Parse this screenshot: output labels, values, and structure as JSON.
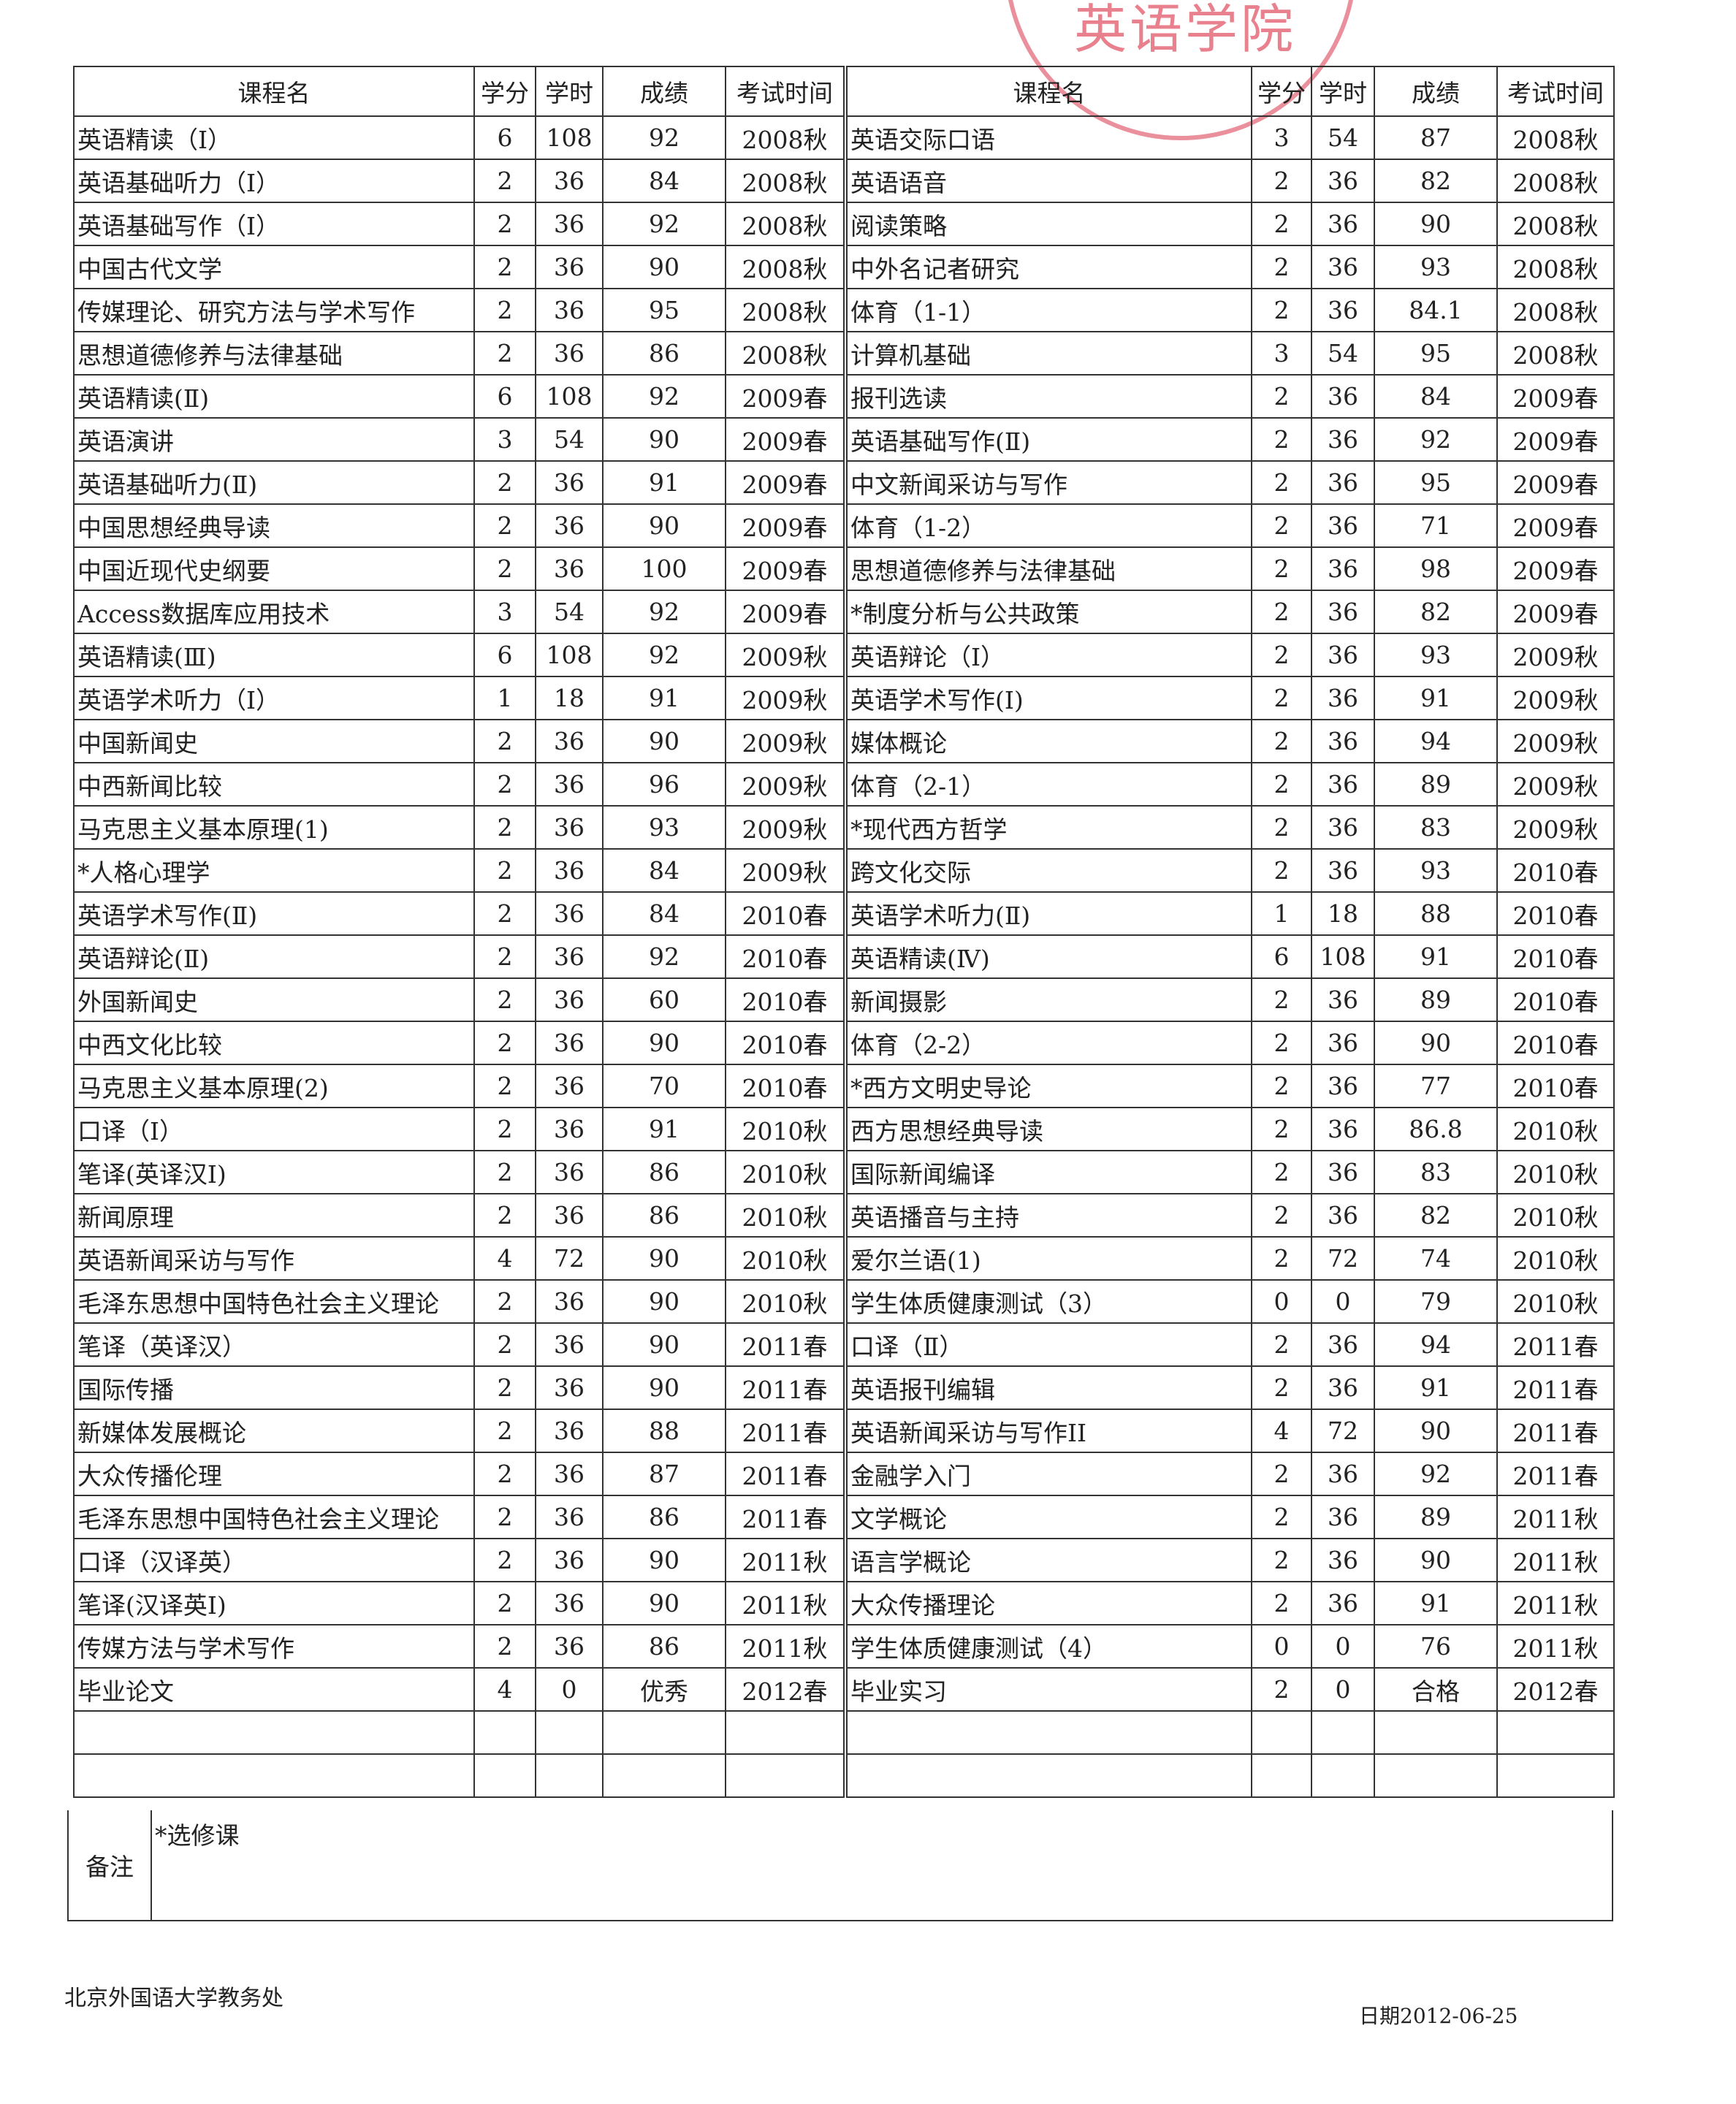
{
  "headers": [
    "课程名",
    "学分",
    "学时",
    "成绩",
    "考试时间"
  ],
  "left_rows": [
    [
      "英语精读（Ⅰ）",
      "6",
      "108",
      "92",
      "2008秋"
    ],
    [
      "英语基础听力（Ⅰ）",
      "2",
      "36",
      "84",
      "2008秋"
    ],
    [
      "英语基础写作（Ⅰ）",
      "2",
      "36",
      "92",
      "2008秋"
    ],
    [
      "中国古代文学",
      "2",
      "36",
      "90",
      "2008秋"
    ],
    [
      "传媒理论、研究方法与学术写作",
      "2",
      "36",
      "95",
      "2008秋"
    ],
    [
      "思想道德修养与法律基础",
      "2",
      "36",
      "86",
      "2008秋"
    ],
    [
      "英语精读(Ⅱ)",
      "6",
      "108",
      "92",
      "2009春"
    ],
    [
      "英语演讲",
      "3",
      "54",
      "90",
      "2009春"
    ],
    [
      "英语基础听力(Ⅱ)",
      "2",
      "36",
      "91",
      "2009春"
    ],
    [
      "中国思想经典导读",
      "2",
      "36",
      "90",
      "2009春"
    ],
    [
      "中国近现代史纲要",
      "2",
      "36",
      "100",
      "2009春"
    ],
    [
      "Access数据库应用技术",
      "3",
      "54",
      "92",
      "2009春"
    ],
    [
      "英语精读(Ⅲ)",
      "6",
      "108",
      "92",
      "2009秋"
    ],
    [
      "英语学术听力（Ⅰ）",
      "1",
      "18",
      "91",
      "2009秋"
    ],
    [
      "中国新闻史",
      "2",
      "36",
      "90",
      "2009秋"
    ],
    [
      "中西新闻比较",
      "2",
      "36",
      "96",
      "2009秋"
    ],
    [
      "马克思主义基本原理(1)",
      "2",
      "36",
      "93",
      "2009秋"
    ],
    [
      "*人格心理学",
      "2",
      "36",
      "84",
      "2009秋"
    ],
    [
      "英语学术写作(Ⅱ)",
      "2",
      "36",
      "84",
      "2010春"
    ],
    [
      "英语辩论(Ⅱ)",
      "2",
      "36",
      "92",
      "2010春"
    ],
    [
      "外国新闻史",
      "2",
      "36",
      "60",
      "2010春"
    ],
    [
      "中西文化比较",
      "2",
      "36",
      "90",
      "2010春"
    ],
    [
      "马克思主义基本原理(2)",
      "2",
      "36",
      "70",
      "2010春"
    ],
    [
      "口译（Ⅰ）",
      "2",
      "36",
      "91",
      "2010秋"
    ],
    [
      "笔译(英译汉Ⅰ)",
      "2",
      "36",
      "86",
      "2010秋"
    ],
    [
      "新闻原理",
      "2",
      "36",
      "86",
      "2010秋"
    ],
    [
      "英语新闻采访与写作",
      "4",
      "72",
      "90",
      "2010秋"
    ],
    [
      "毛泽东思想中国特色社会主义理论",
      "2",
      "36",
      "90",
      "2010秋"
    ],
    [
      "笔译（英译汉）",
      "2",
      "36",
      "90",
      "2011春"
    ],
    [
      "国际传播",
      "2",
      "36",
      "90",
      "2011春"
    ],
    [
      "新媒体发展概论",
      "2",
      "36",
      "88",
      "2011春"
    ],
    [
      "大众传播伦理",
      "2",
      "36",
      "87",
      "2011春"
    ],
    [
      "毛泽东思想中国特色社会主义理论",
      "2",
      "36",
      "86",
      "2011春"
    ],
    [
      "口译（汉译英）",
      "2",
      "36",
      "90",
      "2011秋"
    ],
    [
      "笔译(汉译英Ⅰ)",
      "2",
      "36",
      "90",
      "2011秋"
    ],
    [
      "传媒方法与学术写作",
      "2",
      "36",
      "86",
      "2011秋"
    ],
    [
      "毕业论文",
      "4",
      "0",
      "优秀",
      "2012春"
    ]
  ],
  "right_rows": [
    [
      "英语交际口语",
      "3",
      "54",
      "87",
      "2008秋"
    ],
    [
      "英语语音",
      "2",
      "36",
      "82",
      "2008秋"
    ],
    [
      "阅读策略",
      "2",
      "36",
      "90",
      "2008秋"
    ],
    [
      "中外名记者研究",
      "2",
      "36",
      "93",
      "2008秋"
    ],
    [
      "体育（1-1）",
      "2",
      "36",
      "84.1",
      "2008秋"
    ],
    [
      "计算机基础",
      "3",
      "54",
      "95",
      "2008秋"
    ],
    [
      "报刊选读",
      "2",
      "36",
      "84",
      "2009春"
    ],
    [
      "英语基础写作(Ⅱ)",
      "2",
      "36",
      "92",
      "2009春"
    ],
    [
      "中文新闻采访与写作",
      "2",
      "36",
      "95",
      "2009春"
    ],
    [
      "体育（1-2）",
      "2",
      "36",
      "71",
      "2009春"
    ],
    [
      "思想道德修养与法律基础",
      "2",
      "36",
      "98",
      "2009春"
    ],
    [
      "*制度分析与公共政策",
      "2",
      "36",
      "82",
      "2009春"
    ],
    [
      "英语辩论（Ⅰ）",
      "2",
      "36",
      "93",
      "2009秋"
    ],
    [
      "英语学术写作(Ⅰ)",
      "2",
      "36",
      "91",
      "2009秋"
    ],
    [
      "媒体概论",
      "2",
      "36",
      "94",
      "2009秋"
    ],
    [
      "体育（2-1）",
      "2",
      "36",
      "89",
      "2009秋"
    ],
    [
      "*现代西方哲学",
      "2",
      "36",
      "83",
      "2009秋"
    ],
    [
      "跨文化交际",
      "2",
      "36",
      "93",
      "2010春"
    ],
    [
      "英语学术听力(Ⅱ)",
      "1",
      "18",
      "88",
      "2010春"
    ],
    [
      "英语精读(Ⅳ)",
      "6",
      "108",
      "91",
      "2010春"
    ],
    [
      "新闻摄影",
      "2",
      "36",
      "89",
      "2010春"
    ],
    [
      "体育（2-2）",
      "2",
      "36",
      "90",
      "2010春"
    ],
    [
      "*西方文明史导论",
      "2",
      "36",
      "77",
      "2010春"
    ],
    [
      "西方思想经典导读",
      "2",
      "36",
      "86.8",
      "2010秋"
    ],
    [
      "国际新闻编译",
      "2",
      "36",
      "83",
      "2010秋"
    ],
    [
      "英语播音与主持",
      "2",
      "36",
      "82",
      "2010秋"
    ],
    [
      "爱尔兰语(1)",
      "2",
      "72",
      "74",
      "2010秋"
    ],
    [
      "学生体质健康测试（3）",
      "0",
      "0",
      "79",
      "2010秋"
    ],
    [
      "口译（Ⅱ）",
      "2",
      "36",
      "94",
      "2011春"
    ],
    [
      "英语报刊编辑",
      "2",
      "36",
      "91",
      "2011春"
    ],
    [
      "英语新闻采访与写作II",
      "4",
      "72",
      "90",
      "2011春"
    ],
    [
      "金融学入门",
      "2",
      "36",
      "92",
      "2011春"
    ],
    [
      "文学概论",
      "2",
      "36",
      "89",
      "2011秋"
    ],
    [
      "语言学概论",
      "2",
      "36",
      "90",
      "2011秋"
    ],
    [
      "大众传播理论",
      "2",
      "36",
      "91",
      "2011秋"
    ],
    [
      "学生体质健康测试（4）",
      "0",
      "0",
      "76",
      "2011秋"
    ],
    [
      "毕业实习",
      "2",
      "0",
      "合格",
      "2012春"
    ]
  ],
  "empty_rows": 2,
  "remarks": {
    "label": "备注",
    "text": "*选修课"
  },
  "footer": {
    "issuer": "北京外国语大学教务处",
    "date": "日期2012-06-25"
  },
  "stamp": {
    "text": "英语学院",
    "color": "#dc4658"
  }
}
